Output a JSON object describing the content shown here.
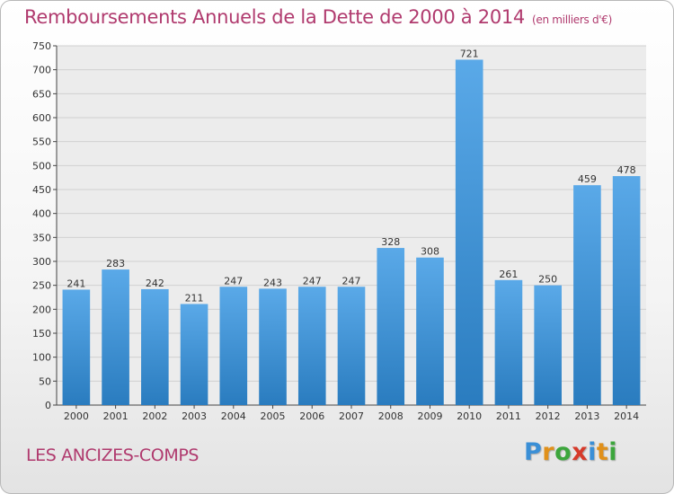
{
  "header": {
    "title": "Remboursements Annuels de la Dette de 2000 à 2014",
    "unit": "(en milliers d'€)"
  },
  "footer": {
    "city": "LES ANCIZES-COMPS",
    "logo_letters": [
      "P",
      "r",
      "o",
      "x",
      "i",
      "t",
      "i"
    ],
    "logo_colors": [
      "#3a8fd6",
      "#e0901a",
      "#3ca63c",
      "#d63a2a",
      "#3a8fd6",
      "#e0901a",
      "#3ca63c"
    ]
  },
  "colors": {
    "title": "#b03a6e",
    "bar_top": "#5aa9e8",
    "bar_bottom": "#2a7cbf"
  },
  "chart_data": {
    "type": "bar",
    "categories": [
      "2000",
      "2001",
      "2002",
      "2003",
      "2004",
      "2005",
      "2006",
      "2007",
      "2008",
      "2009",
      "2010",
      "2011",
      "2012",
      "2013",
      "2014"
    ],
    "values": [
      241,
      283,
      242,
      211,
      247,
      243,
      247,
      247,
      328,
      308,
      721,
      261,
      250,
      459,
      478
    ],
    "yticks": [
      0,
      50,
      100,
      150,
      200,
      250,
      300,
      350,
      400,
      450,
      500,
      550,
      600,
      650,
      700,
      750
    ],
    "ylim": [
      0,
      750
    ],
    "grid": true,
    "legend": "none"
  }
}
